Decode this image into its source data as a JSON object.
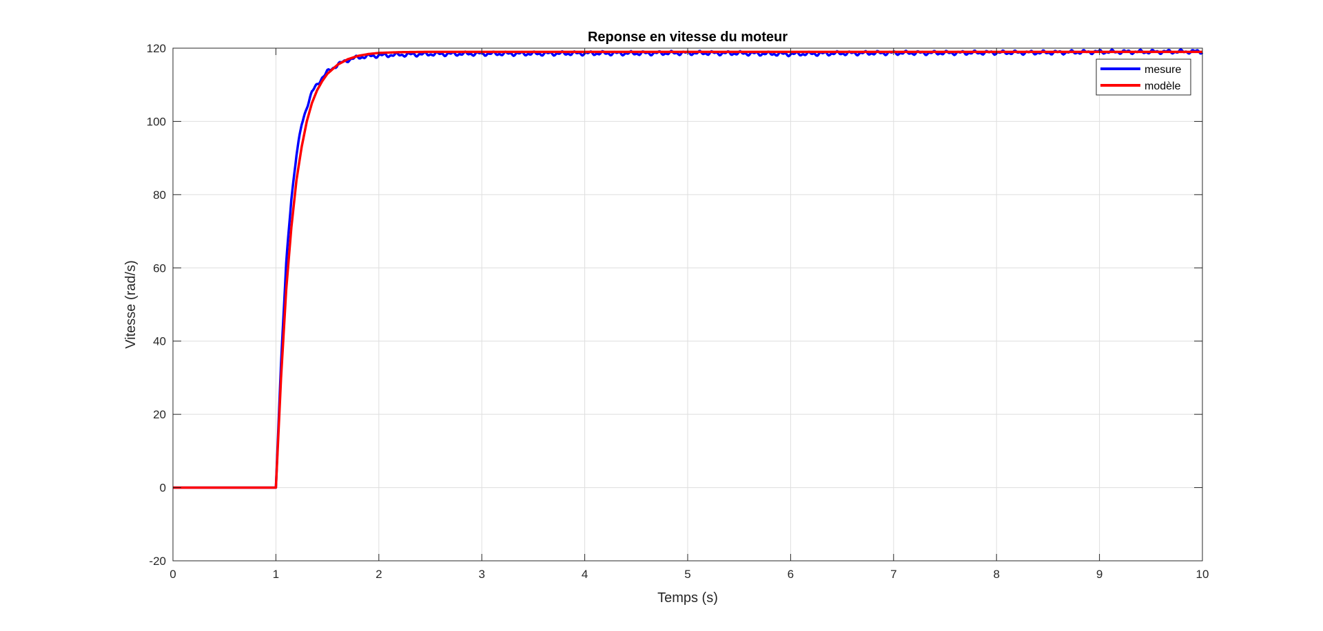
{
  "chart_data": {
    "type": "line",
    "title": "Reponse en vitesse du moteur",
    "xlabel": "Temps (s)",
    "ylabel": "Vitesse (rad/s)",
    "xlim": [
      0,
      10
    ],
    "ylim": [
      -20,
      120
    ],
    "xticks": [
      "0",
      "1",
      "2",
      "3",
      "4",
      "5",
      "6",
      "7",
      "8",
      "9",
      "10"
    ],
    "yticks": [
      "-20",
      "0",
      "20",
      "40",
      "60",
      "80",
      "100",
      "120"
    ],
    "grid": true,
    "legend_position": "top-right",
    "step_time": 1.0,
    "final_value": 119,
    "series": [
      {
        "name": "mesure",
        "color": "#0000ff",
        "x": [
          0,
          1.0,
          1.05,
          1.1,
          1.15,
          1.2,
          1.25,
          1.3,
          1.35,
          1.4,
          1.45,
          1.5,
          1.6,
          1.7,
          1.8,
          1.9,
          2.0,
          2.2,
          2.5,
          3.0,
          3.5,
          4.0,
          4.5,
          5.0,
          5.5,
          6.0,
          6.5,
          7.0,
          7.5,
          8.0,
          8.5,
          9.0,
          9.5,
          10.0
        ],
        "y": [
          0,
          0,
          34,
          61,
          79,
          91,
          99,
          104,
          108,
          110,
          112,
          113.5,
          115.5,
          116.8,
          117.5,
          117.8,
          118.0,
          118.2,
          118.4,
          118.5,
          118.5,
          118.6,
          118.6,
          118.7,
          118.6,
          118.4,
          118.6,
          118.7,
          118.7,
          118.8,
          118.8,
          119.0,
          119.0,
          119.1
        ]
      },
      {
        "name": "modèle",
        "color": "#ff0000",
        "x": [
          0,
          1.0,
          1.05,
          1.1,
          1.15,
          1.2,
          1.25,
          1.3,
          1.35,
          1.4,
          1.45,
          1.5,
          1.6,
          1.7,
          1.8,
          1.9,
          2.0,
          2.2,
          2.5,
          3.0,
          3.5,
          4.0,
          4.5,
          5.0,
          5.5,
          6.0,
          6.5,
          7.0,
          7.5,
          8.0,
          8.5,
          9.0,
          9.5,
          10.0
        ],
        "y": [
          0,
          0,
          30,
          54,
          71,
          84,
          93,
          100,
          105,
          108.5,
          111,
          113,
          115.5,
          117,
          117.9,
          118.4,
          118.7,
          118.9,
          119,
          119,
          119,
          119,
          119,
          119,
          119,
          119,
          119,
          119,
          119,
          119,
          119,
          119,
          119,
          119
        ]
      }
    ]
  }
}
